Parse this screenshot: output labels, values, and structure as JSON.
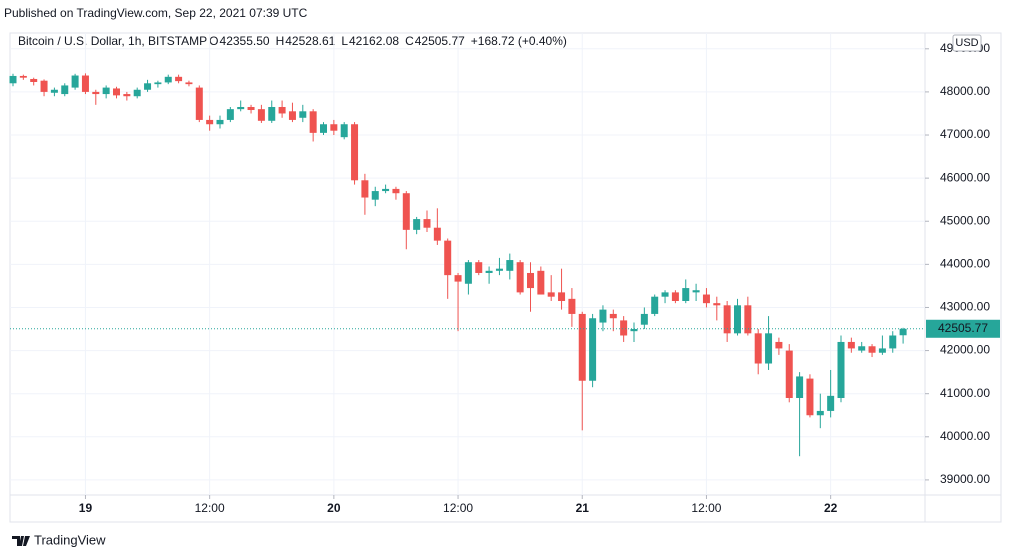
{
  "published": "Published on TradingView.com, Sep 22, 2021 07:39 UTC",
  "symbol": "Bitcoin / U.S. Dollar, 1h, BITSTAMP",
  "ohlc_header": {
    "o_label": "O",
    "open": "42355.50",
    "h_label": "H",
    "high": "42528.61",
    "l_label": "L",
    "low": "42162.08",
    "c_label": "C",
    "close": "42505.77",
    "change": "+168.72 (+0.40%)"
  },
  "currency": "USD",
  "last_price_label": "42505.77",
  "brand": "TradingView",
  "chart_data": {
    "type": "candlestick",
    "up_color": "#26a69a",
    "down_color": "#ef5350",
    "grid": true,
    "categories": [
      null,
      null,
      null,
      null,
      null,
      null,
      null,
      "19",
      null,
      null,
      null,
      null,
      null,
      null,
      null,
      null,
      null,
      null,
      null,
      "12:00",
      null,
      null,
      null,
      null,
      null,
      null,
      null,
      null,
      null,
      null,
      null,
      "20",
      null,
      null,
      null,
      null,
      null,
      null,
      null,
      null,
      null,
      null,
      null,
      "12:00",
      null,
      null,
      null,
      null,
      null,
      null,
      null,
      null,
      null,
      null,
      null,
      "21",
      null,
      null,
      null,
      null,
      null,
      null,
      null,
      null,
      null,
      null,
      null,
      "12:00",
      null,
      null,
      null,
      null,
      null,
      null,
      null,
      null,
      null,
      null,
      null,
      "22",
      null,
      null,
      null,
      null,
      null,
      null,
      null
    ],
    "bold_categories": [
      "19",
      "20",
      "21",
      "22"
    ],
    "open": [
      48200,
      48370,
      48300,
      48260,
      47980,
      47950,
      48100,
      48380,
      48000,
      47950,
      48080,
      47950,
      47900,
      48050,
      48180,
      48220,
      48350,
      48220,
      48100,
      47350,
      47250,
      47350,
      47600,
      47650,
      47600,
      47330,
      47650,
      47550,
      47400,
      47550,
      47050,
      47250,
      46950,
      47250,
      45950,
      45500,
      45700,
      45750,
      45650,
      44800,
      45050,
      44850,
      44550,
      43750,
      43550,
      44050,
      43800,
      43850,
      43850,
      44050,
      43800,
      43850,
      43350,
      43350,
      43200,
      42850,
      41300,
      42650,
      42850,
      42700,
      42450,
      42600,
      42850,
      43250,
      43350,
      43150,
      43350,
      43300,
      43100,
      43050,
      42400,
      43050,
      42400,
      41700,
      42200,
      42000,
      40900,
      41350,
      40500,
      40600,
      40900,
      42200,
      42000,
      42100,
      41950,
      42050,
      42355.5
    ],
    "high": [
      48420,
      48400,
      48330,
      48290,
      48100,
      48200,
      48420,
      48430,
      48050,
      48150,
      48120,
      48000,
      48100,
      48280,
      48260,
      48400,
      48400,
      48260,
      48150,
      47450,
      47450,
      47650,
      47800,
      47700,
      47700,
      47800,
      47800,
      47750,
      47700,
      47600,
      47300,
      47350,
      47300,
      47300,
      46100,
      45800,
      45850,
      45800,
      45700,
      45100,
      45250,
      45300,
      44600,
      43800,
      44100,
      44100,
      43950,
      44150,
      44250,
      44100,
      44050,
      43950,
      43750,
      43900,
      43450,
      42900,
      42850,
      43050,
      42950,
      42800,
      42650,
      43000,
      43300,
      43400,
      43400,
      43650,
      43550,
      43450,
      43250,
      43150,
      43200,
      43250,
      42500,
      42800,
      42300,
      42150,
      41500,
      41450,
      41000,
      41550,
      42350,
      42300,
      42200,
      42150,
      42350,
      42450,
      42528.61
    ],
    "low": [
      48130,
      48280,
      48150,
      47900,
      47900,
      47900,
      48050,
      47950,
      47700,
      47850,
      47850,
      47800,
      47850,
      48000,
      48100,
      48180,
      48200,
      48130,
      47300,
      47100,
      47150,
      47300,
      47550,
      47500,
      47280,
      47280,
      47400,
      47300,
      47300,
      46850,
      47000,
      47000,
      46900,
      45850,
      45150,
      45350,
      45650,
      45500,
      44350,
      44700,
      44750,
      44450,
      43200,
      42450,
      43300,
      43750,
      43550,
      43750,
      43650,
      43300,
      42900,
      43300,
      43150,
      42950,
      42550,
      40150,
      41150,
      42450,
      42450,
      42200,
      42200,
      42500,
      42800,
      43100,
      43100,
      43100,
      43150,
      43000,
      42700,
      42200,
      42350,
      42350,
      41450,
      41550,
      41900,
      40800,
      39550,
      40450,
      40200,
      40450,
      40800,
      41950,
      41950,
      41850,
      41900,
      41950,
      42162.08
    ],
    "close": [
      48370,
      48330,
      48230,
      48000,
      48050,
      48150,
      48380,
      48000,
      47950,
      48100,
      47920,
      47900,
      48050,
      48200,
      48220,
      48350,
      48250,
      48180,
      47350,
      47250,
      47350,
      47600,
      47650,
      47580,
      47330,
      47650,
      47500,
      47350,
      47550,
      47050,
      47250,
      47100,
      47250,
      45950,
      45550,
      45700,
      45750,
      45650,
      44800,
      45050,
      44850,
      44550,
      43750,
      43600,
      44050,
      43800,
      43850,
      43900,
      44100,
      43350,
      43450,
      43300,
      43250,
      43150,
      42850,
      41300,
      42750,
      42950,
      42750,
      42350,
      42500,
      42850,
      43250,
      43350,
      43150,
      43450,
      43400,
      43100,
      43050,
      42400,
      43050,
      42400,
      41700,
      42400,
      42050,
      40900,
      41400,
      40500,
      40600,
      40950,
      42200,
      42050,
      42100,
      41950,
      42050,
      42350,
      42505.77
    ],
    "ylim": [
      38650,
      49320
    ],
    "yticks": [
      {
        "value": 39000,
        "label": "39000.00"
      },
      {
        "value": 40000,
        "label": "40000.00"
      },
      {
        "value": 41000,
        "label": "41000.00"
      },
      {
        "value": 42000,
        "label": "42000.00"
      },
      {
        "value": 43000,
        "label": "43000.00"
      },
      {
        "value": 44000,
        "label": "44000.00"
      },
      {
        "value": 45000,
        "label": "45000.00"
      },
      {
        "value": 46000,
        "label": "46000.00"
      },
      {
        "value": 47000,
        "label": "47000.00"
      },
      {
        "value": 48000,
        "label": "48000.00"
      },
      {
        "value": 49000,
        "label": "49000.00"
      }
    ]
  }
}
